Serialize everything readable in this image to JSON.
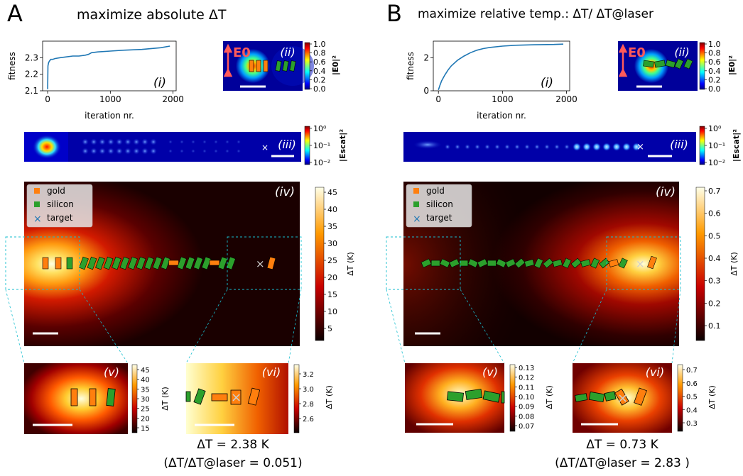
{
  "panels": [
    {
      "letter": "A",
      "title": "maximize absolute ΔT",
      "result_line1": "ΔT = 2.38 K",
      "result_line2": "(ΔT/ΔT@laser = 0.051)"
    },
    {
      "letter": "B",
      "title": "maximize relative temp.: ΔT/ ΔT@laser",
      "result_line1": "ΔT = 0.73 K",
      "result_line2": "(ΔT/ΔT@laser = 2.83 )"
    }
  ],
  "sublabels": {
    "i": "(i)",
    "ii": "(ii)",
    "iii": "(iii)",
    "iv": "(iv)",
    "v": "(v)",
    "vi": "(vi)"
  },
  "field_label": "E0",
  "legend": [
    "gold",
    "silicon",
    "target"
  ],
  "colorbar_labels": {
    "e0": "|E0|²",
    "escat": "|Escat|²",
    "dt": "ΔT (K)"
  },
  "colors": {
    "gold": "#ff7f0e",
    "silicon": "#2ca02c",
    "target": "#1f77b4",
    "fitness_line": "#1f77b4",
    "zoom_box": "#17becf"
  },
  "chart_data": [
    {
      "type": "line",
      "panel": "A",
      "xlabel": "iteration nr.",
      "ylabel": "fitness",
      "xlim": [
        -80,
        2050
      ],
      "ylim": [
        2.1,
        2.4
      ],
      "xticks": [
        0,
        1000,
        2000
      ],
      "yticks": [
        2.1,
        2.2,
        2.3
      ],
      "x": [
        0,
        5,
        15,
        30,
        50,
        80,
        120,
        200,
        300,
        400,
        500,
        600,
        650,
        700,
        800,
        1000,
        1200,
        1500,
        1800,
        1950
      ],
      "y": [
        2.11,
        2.25,
        2.27,
        2.28,
        2.29,
        2.29,
        2.295,
        2.3,
        2.305,
        2.31,
        2.31,
        2.315,
        2.32,
        2.33,
        2.335,
        2.34,
        2.345,
        2.35,
        2.36,
        2.37
      ]
    },
    {
      "type": "line",
      "panel": "B",
      "xlabel": "iteration nr.",
      "ylabel": "fitness",
      "xlim": [
        -80,
        2050
      ],
      "ylim": [
        0,
        3
      ],
      "xticks": [
        0,
        1000,
        2000
      ],
      "yticks": [
        0,
        2
      ],
      "x": [
        0,
        25,
        50,
        100,
        150,
        200,
        300,
        400,
        500,
        600,
        700,
        800,
        1000,
        1200,
        1500,
        1800,
        1950
      ],
      "y": [
        0.05,
        0.35,
        0.6,
        0.95,
        1.25,
        1.5,
        1.85,
        2.1,
        2.3,
        2.45,
        2.55,
        2.62,
        2.7,
        2.75,
        2.78,
        2.8,
        2.82
      ]
    }
  ],
  "colorbars": {
    "e0_ticks": [
      "1.0",
      "0.8",
      "0.6",
      "0.4",
      "0.2",
      "0.0"
    ],
    "escat_ticks": [
      "10⁰",
      "10⁻¹",
      "10⁻²"
    ],
    "A_iv_ticks": [
      "45",
      "40",
      "35",
      "30",
      "25",
      "20",
      "15",
      "10",
      "5"
    ],
    "A_v_ticks": [
      "45",
      "40",
      "35",
      "30",
      "25",
      "20",
      "15"
    ],
    "A_vi_ticks": [
      "3.2",
      "3.0",
      "2.8",
      "2.6"
    ],
    "B_iv_ticks": [
      "0.7",
      "0.6",
      "0.5",
      "0.4",
      "0.3",
      "0.2",
      "0.1"
    ],
    "B_v_ticks": [
      "0.13",
      "0.12",
      "0.11",
      "0.10",
      "0.09",
      "0.08",
      "0.07"
    ],
    "B_vi_ticks": [
      "0.7",
      "0.6",
      "0.5",
      "0.4",
      "0.3"
    ]
  }
}
